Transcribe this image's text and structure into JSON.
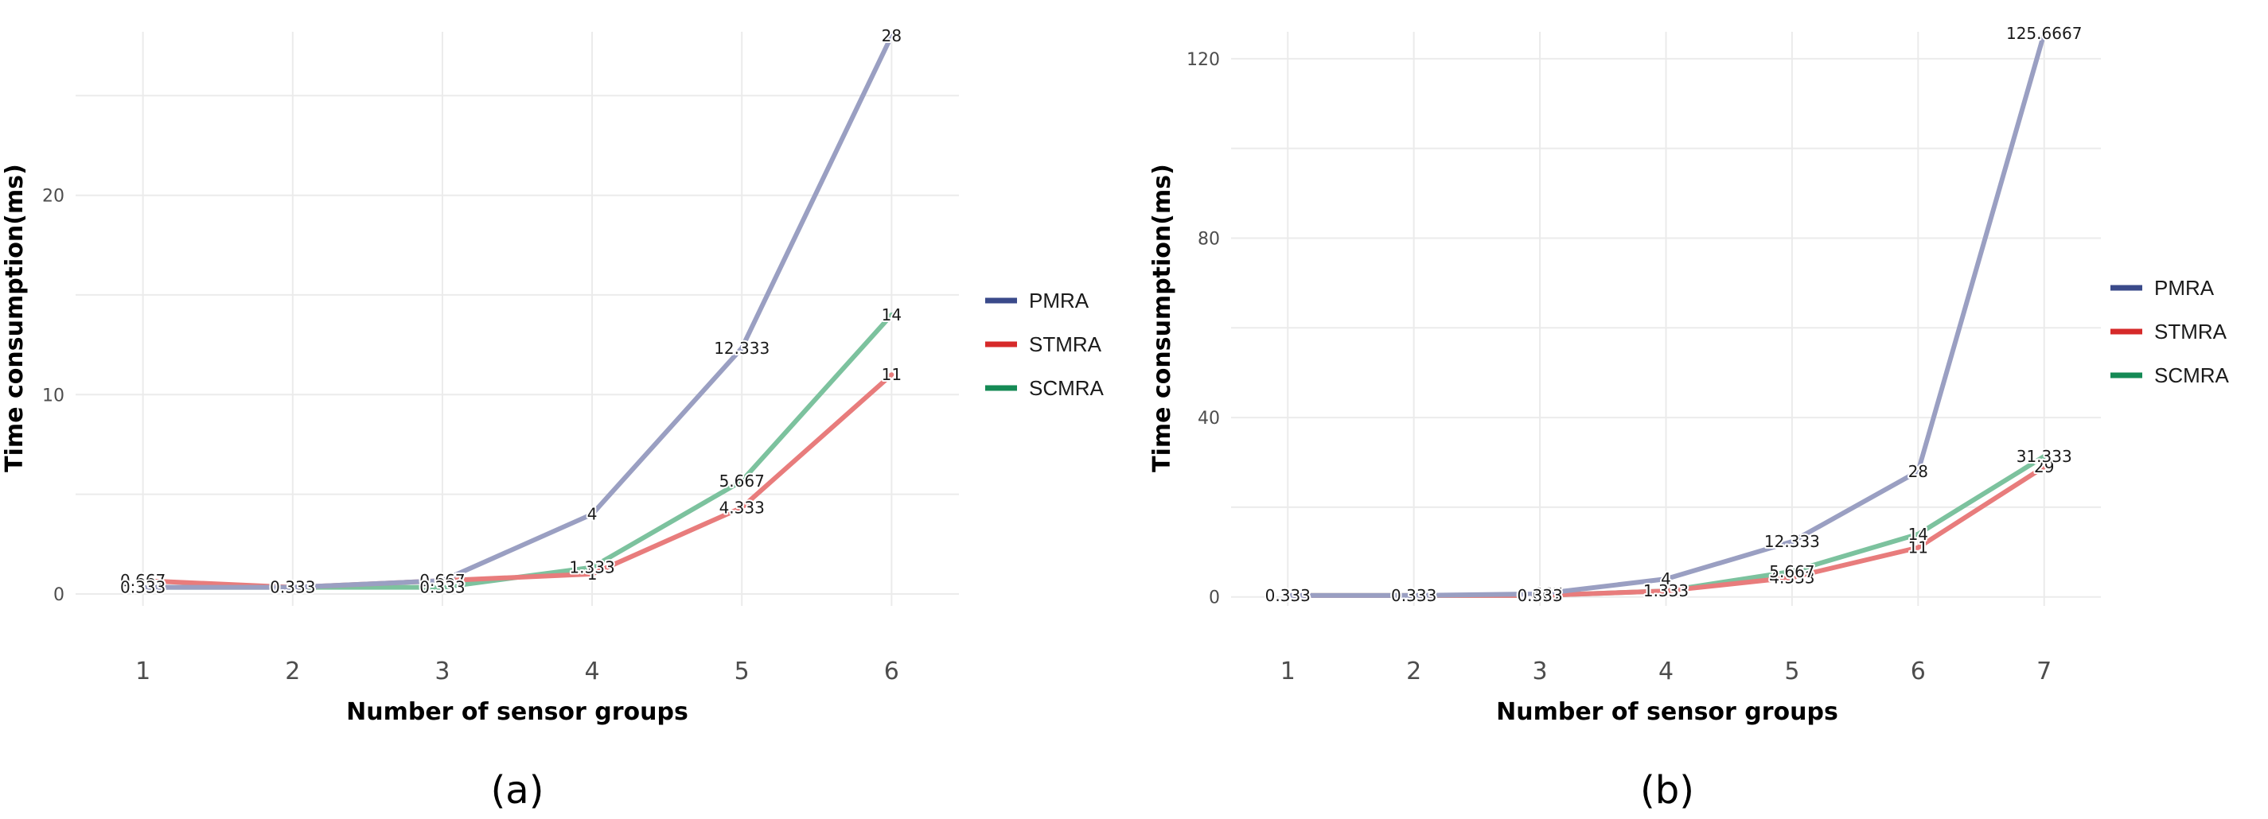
{
  "colors": {
    "PMRA": "#9a9fc2",
    "STMRA": "#e87c7c",
    "SCMRA": "#7cc29e",
    "legend_PMRA": "#3a4a8a",
    "legend_STMRA": "#d62a2a",
    "legend_SCMRA": "#158a55"
  },
  "chart_data": [
    {
      "type": "line",
      "panel_label": "(a)",
      "xlabel": "Number of sensor groups",
      "ylabel": "Time consumption(ms)",
      "x": [
        1,
        2,
        3,
        4,
        5,
        6
      ],
      "x_tick_labels": [
        "1",
        "2",
        "3",
        "4",
        "5",
        "6"
      ],
      "xlim": [
        0.55,
        6.45
      ],
      "ylim": [
        -0.6,
        28.2
      ],
      "y_ticks": [
        0,
        10,
        20
      ],
      "y_tick_labels": [
        "0",
        "10",
        "20"
      ],
      "grid": true,
      "legend_position": "right",
      "series": [
        {
          "name": "PMRA",
          "values": [
            0.333,
            0.333,
            0.667,
            4,
            12.333,
            28
          ],
          "labels": [
            "0.333",
            "0.333",
            "0.667",
            "4",
            "12.333",
            "28"
          ]
        },
        {
          "name": "STMRA",
          "values": [
            0.667,
            0.333,
            0.667,
            1,
            4.333,
            11
          ],
          "labels": [
            "0.667",
            "0.333",
            "0.667",
            "1",
            "4.333",
            "11"
          ]
        },
        {
          "name": "SCMRA",
          "values": [
            0.333,
            0.333,
            0.333,
            1.333,
            5.667,
            14
          ],
          "labels": [
            "0.333",
            "0.333",
            "0.333",
            "1.333",
            "5.667",
            "14"
          ]
        }
      ]
    },
    {
      "type": "line",
      "panel_label": "(b)",
      "xlabel": "Number of sensor groups",
      "ylabel": "Time consumption(ms)",
      "x": [
        1,
        2,
        3,
        4,
        5,
        6,
        7
      ],
      "x_tick_labels": [
        "1",
        "2",
        "3",
        "4",
        "5",
        "6",
        "7"
      ],
      "xlim": [
        0.55,
        7.45
      ],
      "ylim": [
        -2,
        126
      ],
      "y_ticks": [
        0,
        40,
        80,
        120
      ],
      "y_tick_labels": [
        "0",
        "40",
        "80",
        "120"
      ],
      "grid": true,
      "legend_position": "right",
      "series": [
        {
          "name": "PMRA",
          "values": [
            0.333,
            0.333,
            0.667,
            4,
            12.333,
            28,
            125.6667
          ],
          "labels": [
            "0.333",
            "0.333",
            "0.667",
            "4",
            "12.333",
            "28",
            "125.6667"
          ]
        },
        {
          "name": "STMRA",
          "values": [
            0.333,
            0.333,
            0.333,
            1.333,
            4.333,
            11,
            29
          ],
          "labels": [
            "0.333",
            "0.333",
            "0.333",
            "1.333",
            "4.333",
            "11",
            "29"
          ]
        },
        {
          "name": "SCMRA",
          "values": [
            0.333,
            0.333,
            0.333,
            1.333,
            5.667,
            14,
            31.333
          ],
          "labels": [
            "0.333",
            "0.333",
            "0.333",
            "1.333",
            "5.667",
            "14",
            "31.333"
          ]
        }
      ]
    }
  ]
}
